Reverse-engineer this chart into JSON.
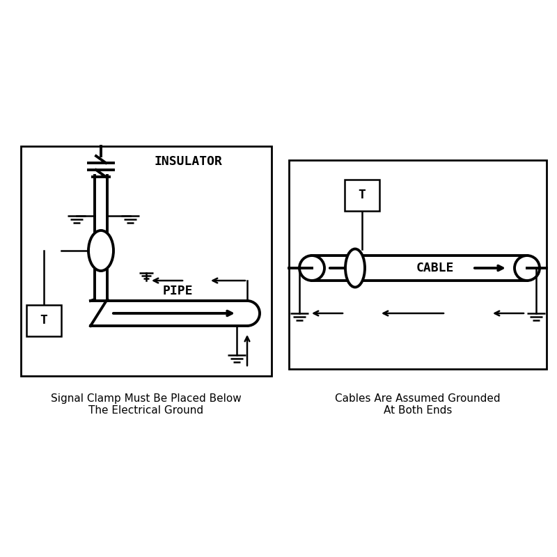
{
  "bg_color": "#ffffff",
  "line_color": "#000000",
  "fig_width": 8.0,
  "fig_height": 8.0,
  "caption_left": "Signal Clamp Must Be Placed Below\nThe Electrical Ground",
  "caption_right": "Cables Are Assumed Grounded\nAt Both Ends",
  "caption_fontsize": 11,
  "label_insulator": "INSULATOR",
  "label_pipe": "PIPE",
  "label_cable": "CABLE",
  "label_T": "T"
}
